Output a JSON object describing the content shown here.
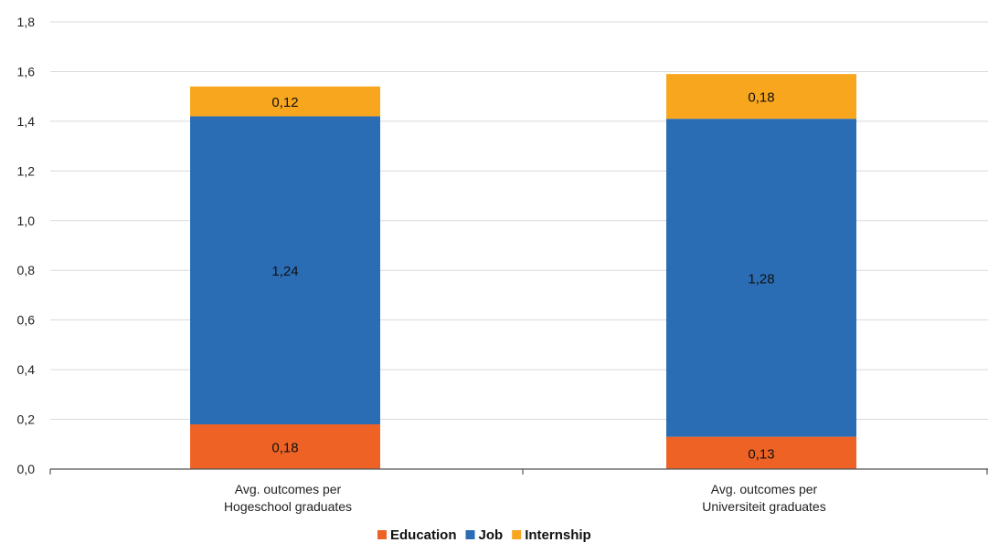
{
  "chart_data": {
    "type": "bar",
    "stacked": true,
    "categories": [
      [
        "Avg. outcomes per",
        "Hogeschool graduates"
      ],
      [
        "Avg. outcomes per",
        "Universiteit graduates"
      ]
    ],
    "series": [
      {
        "name": "Education",
        "color": "#ee6325",
        "values": [
          0.18,
          0.13
        ],
        "labels": [
          "0,18",
          "0,13"
        ]
      },
      {
        "name": "Job",
        "color": "#2a6db5",
        "values": [
          1.24,
          1.28
        ],
        "labels": [
          "1,24",
          "1,28"
        ]
      },
      {
        "name": "Internship",
        "color": "#f8a61e",
        "values": [
          0.12,
          0.18
        ],
        "labels": [
          "0,12",
          "0,18"
        ]
      }
    ],
    "ylim": [
      0,
      1.8
    ],
    "yticks": [
      "0,0",
      "0,2",
      "0,4",
      "0,6",
      "0,8",
      "1,0",
      "1,2",
      "1,4",
      "1,6",
      "1,8"
    ],
    "ytick_values": [
      0,
      0.2,
      0.4,
      0.6,
      0.8,
      1.0,
      1.2,
      1.4,
      1.6,
      1.8
    ],
    "grid": true,
    "legend": "bottom-center",
    "gridline_color": "#d9d9d9"
  }
}
